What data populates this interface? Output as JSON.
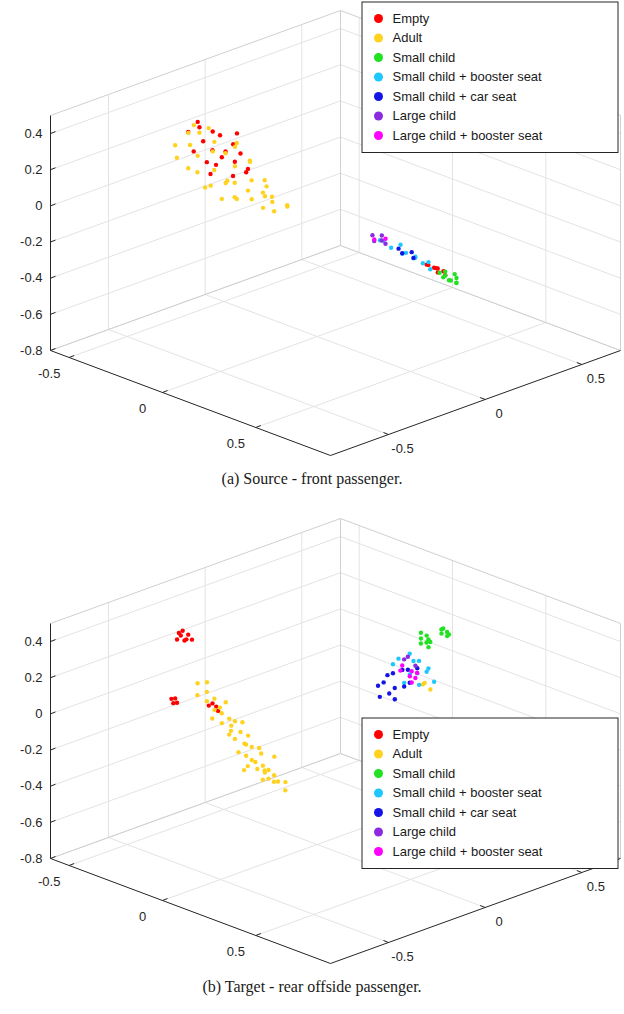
{
  "chart_data": [
    {
      "type": "scatter",
      "title": "(a) Source - front passenger.",
      "grid": true,
      "legend": "upper right",
      "xlim": [
        -0.6,
        0.9
      ],
      "ylim": [
        -0.8,
        0.7
      ],
      "zlim": [
        -0.8,
        0.5
      ],
      "xticks": [
        -0.5,
        0,
        0.5
      ],
      "yticks": [
        -0.5,
        0,
        0.5
      ],
      "zticks": [
        -0.8,
        -0.6,
        -0.4,
        -0.2,
        0,
        0.2,
        0.4
      ],
      "series": [
        {
          "name": "Empty",
          "color": "#ff0000",
          "x": [
            -0.38,
            -0.35,
            -0.33,
            -0.3,
            -0.28,
            -0.27,
            -0.25,
            -0.22,
            -0.2,
            -0.18,
            -0.16,
            -0.14,
            -0.12,
            -0.1,
            -0.08,
            -0.06,
            -0.32,
            -0.24,
            -0.15,
            -0.2,
            0.12,
            0.14,
            0.15,
            0.17,
            0.18,
            0.19,
            0.2,
            0.22
          ],
          "y": [
            -0.3,
            -0.28,
            -0.32,
            -0.3,
            -0.27,
            -0.31,
            -0.3,
            -0.29,
            -0.33,
            -0.3,
            -0.28,
            -0.3,
            -0.31,
            -0.3,
            -0.29,
            -0.3,
            -0.3,
            -0.32,
            -0.27,
            -0.3,
            0.45,
            0.44,
            0.46,
            0.45,
            0.45,
            0.44,
            0.46,
            0.45
          ],
          "z": [
            0.3,
            0.36,
            0.22,
            0.28,
            0.33,
            0.18,
            0.25,
            0.34,
            0.2,
            0.27,
            0.31,
            0.15,
            0.24,
            0.29,
            0.19,
            0.22,
            0.35,
            0.13,
            0.37,
            0.23,
            -0.53,
            -0.52,
            -0.54,
            -0.53,
            -0.55,
            -0.52,
            -0.54,
            -0.55
          ]
        },
        {
          "name": "Adult",
          "color": "#ffd21f",
          "x": [
            -0.45,
            -0.42,
            -0.4,
            -0.38,
            -0.36,
            -0.34,
            -0.32,
            -0.3,
            -0.28,
            -0.26,
            -0.24,
            -0.22,
            -0.2,
            -0.18,
            -0.16,
            -0.14,
            -0.12,
            -0.1,
            -0.08,
            -0.06,
            -0.04,
            -0.02,
            0,
            0.02,
            0.04,
            0.06,
            0.08,
            0.1,
            0.12,
            0.15,
            -0.35,
            -0.25,
            -0.15,
            -0.05,
            0.05,
            -0.3,
            -0.2,
            -0.1,
            0,
            -0.12
          ],
          "y": [
            -0.3,
            -0.32,
            -0.28,
            -0.3,
            -0.31,
            -0.29,
            -0.3,
            -0.33,
            -0.27,
            -0.3,
            -0.3,
            -0.32,
            -0.28,
            -0.3,
            -0.31,
            -0.29,
            -0.3,
            -0.33,
            -0.27,
            -0.3,
            -0.3,
            -0.32,
            -0.28,
            -0.3,
            -0.31,
            -0.29,
            -0.3,
            -0.33,
            -0.27,
            -0.3,
            -0.3,
            -0.32,
            -0.28,
            -0.3,
            -0.31,
            -0.29,
            -0.3,
            -0.33,
            -0.27,
            -0.3
          ],
          "z": [
            0.2,
            0.15,
            0.28,
            0.1,
            0.24,
            0.18,
            0.32,
            0.12,
            0.22,
            0.05,
            0.3,
            0.16,
            0.08,
            0.26,
            0.12,
            0.2,
            0.03,
            0.14,
            0.24,
            0.1,
            0.06,
            0.18,
            0.02,
            0.12,
            0.2,
            0.08,
            0.04,
            0.14,
            0.07,
            0.1,
            0.35,
            0.38,
            0.3,
            0.27,
            0.17,
            0.02,
            0.0,
            0.06,
            0.08,
            0.34
          ]
        },
        {
          "name": "Small child",
          "color": "#22e022",
          "x": [
            0.2,
            0.21,
            0.22,
            0.23,
            0.24,
            0.25,
            0.26,
            0.27,
            0.28,
            0.29
          ],
          "y": [
            0.44,
            0.46,
            0.45,
            0.43,
            0.45,
            0.47,
            0.44,
            0.46,
            0.45,
            0.44
          ],
          "z": [
            -0.54,
            -0.56,
            -0.53,
            -0.55,
            -0.57,
            -0.54,
            -0.56,
            -0.55,
            -0.57,
            -0.56
          ]
        },
        {
          "name": "Small child + booster seat",
          "color": "#1ec8ff",
          "x": [
            -0.14,
            -0.1,
            -0.07,
            -0.04,
            -0.01,
            0.02,
            0.04,
            0.06,
            0.08,
            0.1,
            0.12,
            0.15
          ],
          "y": [
            0.46,
            0.44,
            0.45,
            0.47,
            0.45,
            0.44,
            0.46,
            0.45,
            0.43,
            0.45,
            0.46,
            0.44
          ],
          "z": [
            -0.5,
            -0.48,
            -0.51,
            -0.49,
            -0.52,
            -0.5,
            -0.53,
            -0.51,
            -0.5,
            -0.53,
            -0.52,
            -0.54
          ]
        },
        {
          "name": "Small child + car seat",
          "color": "#1414e6",
          "x": [
            -0.03,
            0.0,
            0.03,
            0.05
          ],
          "y": [
            0.45,
            0.44,
            0.46,
            0.45
          ],
          "z": [
            -0.5,
            -0.51,
            -0.5,
            -0.52
          ]
        },
        {
          "name": "Large child",
          "color": "#8b2be0",
          "x": [
            -0.17,
            -0.15,
            -0.13,
            -0.12,
            -0.1
          ],
          "y": [
            0.45,
            0.44,
            0.46,
            0.45,
            0.45
          ],
          "z": [
            -0.48,
            -0.5,
            -0.47,
            -0.49,
            -0.5
          ]
        },
        {
          "name": "Large child + booster seat",
          "color": "#ff00ff",
          "x": [
            -0.16,
            -0.11
          ],
          "y": [
            0.45,
            0.46
          ],
          "z": [
            -0.5,
            -0.48
          ]
        }
      ]
    },
    {
      "type": "scatter",
      "title": "(b) Target - rear offside passenger.",
      "grid": true,
      "legend": "right",
      "xlim": [
        -0.6,
        0.9
      ],
      "ylim": [
        -0.8,
        0.7
      ],
      "zlim": [
        -0.8,
        0.5
      ],
      "xticks": [
        -0.5,
        0,
        0.5
      ],
      "yticks": [
        -0.5,
        0,
        0.5
      ],
      "zticks": [
        -0.8,
        -0.6,
        -0.4,
        -0.2,
        0,
        0.2,
        0.4
      ],
      "series": [
        {
          "name": "Empty",
          "color": "#ff0000",
          "x": [
            -0.44,
            -0.42,
            -0.4,
            -0.38,
            -0.43,
            -0.39,
            -0.36,
            -0.41,
            -0.47,
            -0.46,
            -0.45,
            -0.44,
            -0.27,
            -0.25,
            -0.23,
            -0.22
          ],
          "y": [
            -0.3,
            -0.3,
            -0.3,
            -0.3,
            -0.3,
            -0.3,
            -0.3,
            -0.3,
            -0.3,
            -0.3,
            -0.3,
            -0.3,
            -0.3,
            -0.3,
            -0.3,
            -0.3
          ],
          "z": [
            0.28,
            0.31,
            0.29,
            0.33,
            0.32,
            0.3,
            0.31,
            0.34,
            -0.06,
            -0.08,
            -0.05,
            -0.07,
            -0.02,
            0.0,
            -0.01,
            -0.03
          ]
        },
        {
          "name": "Adult",
          "color": "#ffd21f",
          "x": [
            -0.33,
            -0.31,
            -0.3,
            -0.28,
            -0.27,
            -0.25,
            -0.24,
            -0.22,
            -0.21,
            -0.2,
            -0.18,
            -0.17,
            -0.16,
            -0.15,
            -0.14,
            -0.13,
            -0.12,
            -0.11,
            -0.1,
            -0.09,
            -0.08,
            -0.07,
            -0.06,
            -0.05,
            -0.04,
            -0.03,
            -0.02,
            -0.01,
            0,
            0.01,
            0.02,
            0.03,
            0.04,
            0.05,
            0.06,
            0.07,
            0.08,
            0.1,
            0.12,
            0.14,
            -0.2,
            -0.1,
            0.0,
            -0.05,
            0.05,
            0.1,
            0.12,
            0.13
          ],
          "y": [
            -0.3,
            -0.32,
            -0.28,
            -0.3,
            -0.31,
            -0.29,
            -0.3,
            -0.33,
            -0.27,
            -0.3,
            -0.32,
            -0.28,
            -0.3,
            -0.31,
            -0.29,
            -0.3,
            -0.33,
            -0.27,
            -0.3,
            -0.32,
            -0.28,
            -0.3,
            -0.31,
            -0.29,
            -0.3,
            -0.33,
            -0.27,
            -0.3,
            -0.32,
            -0.28,
            -0.3,
            -0.31,
            -0.29,
            -0.3,
            -0.33,
            -0.27,
            -0.3,
            -0.32,
            -0.28,
            -0.3,
            -0.31,
            -0.29,
            -0.3,
            -0.33,
            -0.27,
            0.45,
            0.44,
            0.46
          ],
          "z": [
            0.08,
            0.03,
            0.09,
            0.0,
            0.06,
            -0.04,
            0.03,
            -0.06,
            0.01,
            -0.09,
            -0.02,
            -0.1,
            -0.05,
            -0.13,
            -0.06,
            -0.15,
            -0.09,
            -0.18,
            -0.1,
            -0.2,
            -0.12,
            -0.22,
            -0.15,
            -0.24,
            -0.16,
            -0.25,
            -0.2,
            -0.27,
            -0.22,
            -0.29,
            -0.24,
            -0.31,
            -0.26,
            -0.3,
            -0.24,
            -0.32,
            -0.27,
            -0.29,
            -0.3,
            -0.33,
            0.0,
            -0.05,
            -0.15,
            -0.28,
            -0.19,
            -0.05,
            -0.03,
            -0.07
          ]
        },
        {
          "name": "Small child",
          "color": "#22e022",
          "x": [
            0.09,
            0.1,
            0.11,
            0.12,
            0.13,
            0.1,
            0.12,
            0.14,
            0.2,
            0.21,
            0.22,
            0.23,
            0.24,
            0.22
          ],
          "y": [
            0.45,
            0.44,
            0.46,
            0.45,
            0.45,
            0.44,
            0.46,
            0.45,
            0.45,
            0.44,
            0.46,
            0.45,
            0.45,
            0.44
          ],
          "z": [
            0.2,
            0.18,
            0.22,
            0.19,
            0.21,
            0.24,
            0.16,
            0.2,
            0.27,
            0.3,
            0.26,
            0.29,
            0.28,
            0.31
          ]
        },
        {
          "name": "Small child + booster seat",
          "color": "#1ec8ff",
          "x": [
            -0.06,
            -0.02,
            0.02,
            0.05,
            0.07,
            0.09,
            0.11,
            0.13,
            0.08,
            0.04,
            0.15,
            0.0
          ],
          "y": [
            0.45,
            0.44,
            0.46,
            0.45,
            0.45,
            0.44,
            0.46,
            0.45,
            0.45,
            0.44,
            0.46,
            0.45
          ],
          "z": [
            0.0,
            0.05,
            -0.03,
            0.06,
            0.0,
            0.08,
            0.02,
            0.05,
            -0.06,
            0.1,
            -0.02,
            -0.08
          ]
        },
        {
          "name": "Small child + car seat",
          "color": "#1414e6",
          "x": [
            -0.14,
            -0.12,
            -0.1,
            -0.08,
            -0.06,
            -0.04,
            -0.02,
            0,
            0.02,
            0.04,
            0.06,
            -0.11,
            -0.05
          ],
          "y": [
            0.45,
            0.44,
            0.46,
            0.45,
            0.45,
            0.44,
            0.46,
            0.45,
            0.45,
            0.44,
            0.46,
            0.45,
            0.45
          ],
          "z": [
            -0.15,
            -0.2,
            -0.08,
            -0.17,
            -0.05,
            -0.12,
            -0.02,
            -0.1,
            0.0,
            -0.06,
            0.02,
            -0.12,
            -0.19
          ]
        },
        {
          "name": "Large child",
          "color": "#8b2be0",
          "x": [
            0.0,
            0.03,
            0.05
          ],
          "y": [
            0.45,
            0.44,
            0.46
          ],
          "z": [
            0.05,
            0.08,
            0.03
          ]
        },
        {
          "name": "Large child + booster seat",
          "color": "#ff00ff",
          "x": [
            -0.02,
            0.0,
            0.02,
            0.04,
            0.06,
            0.08,
            0.03
          ],
          "y": [
            0.45,
            0.44,
            0.46,
            0.45,
            0.45,
            0.44,
            0.46
          ],
          "z": [
            -0.02,
            0.02,
            -0.04,
            0.0,
            -0.03,
            0.01,
            -0.07
          ]
        }
      ]
    }
  ]
}
